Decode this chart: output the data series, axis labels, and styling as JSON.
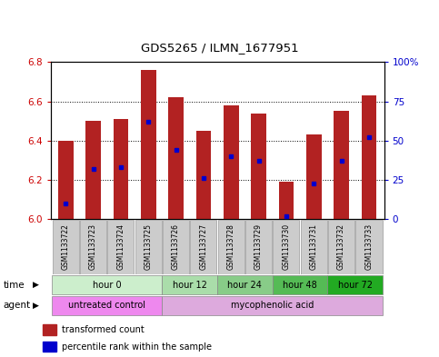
{
  "title": "GDS5265 / ILMN_1677951",
  "samples": [
    "GSM1133722",
    "GSM1133723",
    "GSM1133724",
    "GSM1133725",
    "GSM1133726",
    "GSM1133727",
    "GSM1133728",
    "GSM1133729",
    "GSM1133730",
    "GSM1133731",
    "GSM1133732",
    "GSM1133733"
  ],
  "bar_top": [
    6.4,
    6.5,
    6.51,
    6.76,
    6.62,
    6.45,
    6.58,
    6.54,
    6.19,
    6.43,
    6.55,
    6.63
  ],
  "bar_bottom": [
    6.0,
    6.0,
    6.0,
    6.0,
    6.0,
    6.0,
    6.0,
    6.0,
    6.0,
    6.0,
    6.0,
    6.0
  ],
  "percentile_rank": [
    10,
    32,
    33,
    62,
    44,
    26,
    40,
    37,
    2,
    23,
    37,
    52
  ],
  "ylim_left": [
    6.0,
    6.8
  ],
  "ylim_right": [
    0,
    100
  ],
  "yticks_left": [
    6.0,
    6.2,
    6.4,
    6.6,
    6.8
  ],
  "yticks_right": [
    0,
    25,
    50,
    75,
    100
  ],
  "ytick_labels_right": [
    "0",
    "25",
    "50",
    "75",
    "100%"
  ],
  "bar_color": "#b22222",
  "percentile_color": "#0000cd",
  "time_groups": [
    {
      "label": "hour 0",
      "start": 0,
      "end": 4,
      "color": "#cceecc"
    },
    {
      "label": "hour 12",
      "start": 4,
      "end": 6,
      "color": "#aaddaa"
    },
    {
      "label": "hour 24",
      "start": 6,
      "end": 8,
      "color": "#88cc88"
    },
    {
      "label": "hour 48",
      "start": 8,
      "end": 10,
      "color": "#55bb55"
    },
    {
      "label": "hour 72",
      "start": 10,
      "end": 12,
      "color": "#22aa22"
    }
  ],
  "agent_groups": [
    {
      "label": "untreated control",
      "start": 0,
      "end": 4,
      "color": "#ee88ee"
    },
    {
      "label": "mycophenolic acid",
      "start": 4,
      "end": 12,
      "color": "#ddaadd"
    }
  ],
  "legend_items": [
    {
      "label": "transformed count",
      "color": "#b22222"
    },
    {
      "label": "percentile rank within the sample",
      "color": "#0000cd"
    }
  ],
  "background_color": "#ffffff",
  "time_label": "time",
  "agent_label": "agent"
}
